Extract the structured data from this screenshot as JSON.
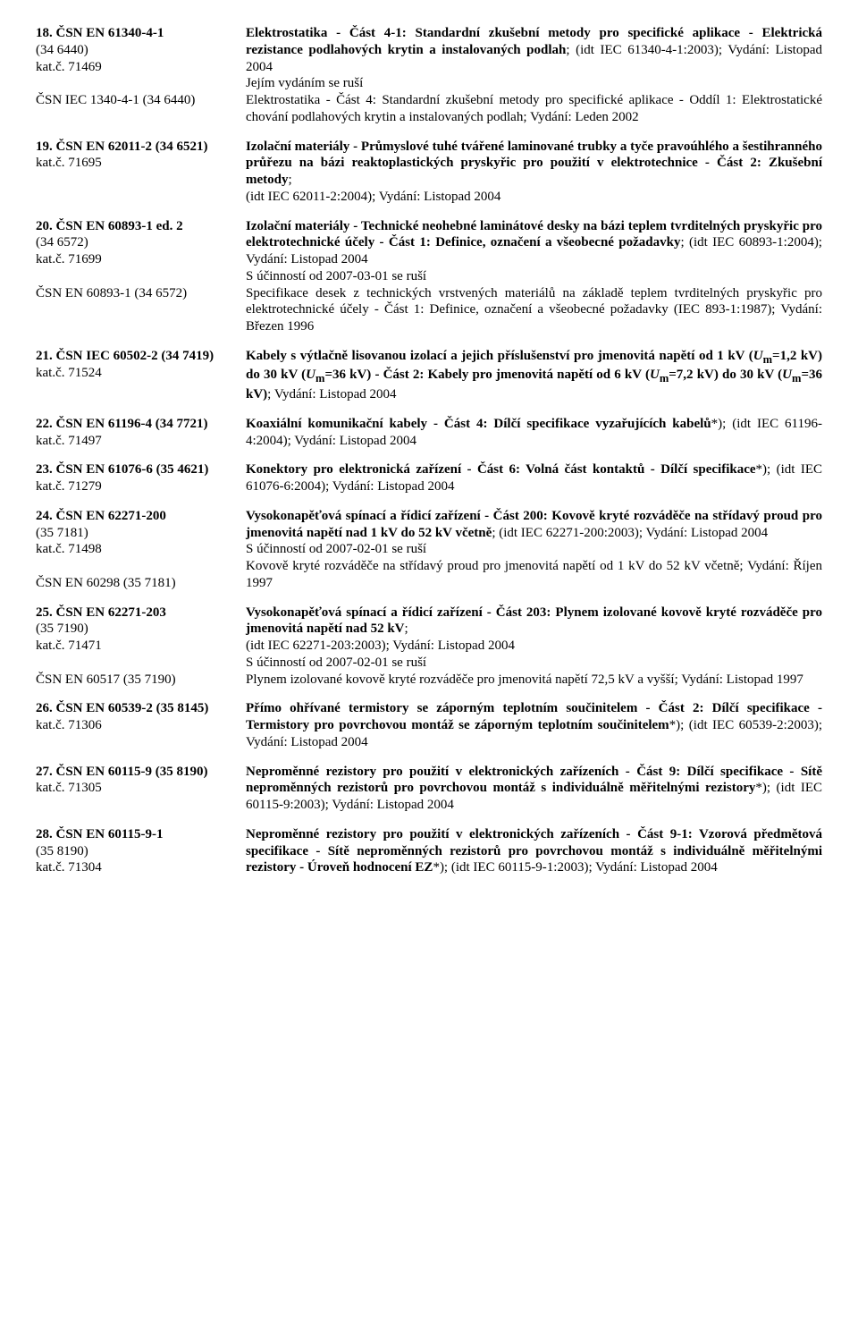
{
  "entries": [
    {
      "left": [
        {
          "text": "18. ČSN EN 61340-4-1",
          "bold": true
        },
        {
          "text": "(34 6440)"
        },
        {
          "text": "kat.č. 71469"
        },
        {
          "text": ""
        },
        {
          "text": "ČSN IEC 1340-4-1 (34 6440)"
        }
      ],
      "right": [
        {
          "html": "<span class='bold'>Elektrostatika - Část 4-1: Standardní zkušební metody pro specifické aplikace - Elektrická rezistance podlahových krytin a instalovaných podlah</span>; (idt IEC 61340-4-1:2003); Vydání: Listopad 2004"
        },
        {
          "html": "Jejím vydáním se ruší"
        },
        {
          "html": "Elektrostatika - Část 4: Standardní zkušební metody pro specifické aplikace - Oddíl 1: Elektrostatické chování podlahových krytin a instalovaných podlah; Vydání: Leden 2002"
        }
      ]
    },
    {
      "left": [
        {
          "text": "19. ČSN EN 62011-2 (34 6521)",
          "bold": true
        },
        {
          "text": "kat.č. 71695"
        }
      ],
      "right": [
        {
          "html": "<span class='bold'>Izolační materiály - Průmyslové tuhé tvářené laminované trubky a tyče pravoúhlého a šestihranného průřezu na bázi reaktoplastických pryskyřic pro použití v elektrotechnice - Část 2: Zkušební metody</span>;"
        },
        {
          "html": "(idt IEC 62011-2:2004); Vydání: Listopad 2004"
        }
      ]
    },
    {
      "left": [
        {
          "text": "20. ČSN EN 60893-1 ed. 2",
          "bold": true
        },
        {
          "text": "(34 6572)"
        },
        {
          "text": "kat.č. 71699"
        },
        {
          "text": ""
        },
        {
          "text": "ČSN EN 60893-1 (34 6572)"
        }
      ],
      "right": [
        {
          "html": "<span class='bold'>Izolační materiály - Technické neohebné laminátové desky na bázi teplem tvrditelných pryskyřic pro elektrotechnické účely - Část 1: Definice, označení a všeobecné požadavky</span>; (idt IEC 60893-1:2004); Vydání: Listopad 2004"
        },
        {
          "html": "S účinností od 2007-03-01 se ruší"
        },
        {
          "html": "Specifikace desek z technických vrstvených materiálů na základě teplem tvrditelných pryskyřic pro elektrotechnické účely - Část 1: Definice, označení a všeobecné požadavky (IEC 893-1:1987); Vydání: Březen 1996"
        }
      ]
    },
    {
      "left": [
        {
          "text": "21. ČSN IEC 60502-2 (34 7419)",
          "bold": true
        },
        {
          "text": "kat.č. 71524"
        }
      ],
      "right": [
        {
          "html": "<span class='bold'>Kabely s výtlačně lisovanou izolací a jejich příslušenství pro jmenovitá napětí od 1 kV (<i>U</i><sub>m</sub>=1,2 kV) do 30 kV (<i>U</i><sub>m</sub>=36 kV) - Část 2: Kabely pro jmenovitá napětí od 6 kV (<i>U</i><sub>m</sub>=7,2 kV) do 30 kV (<i>U</i><sub>m</sub>=36 kV)</span>; Vydání: Listopad 2004"
        }
      ]
    },
    {
      "left": [
        {
          "text": "22. ČSN EN 61196-4 (34 7721)",
          "bold": true
        },
        {
          "text": "kat.č. 71497"
        }
      ],
      "right": [
        {
          "html": "<span class='bold'>Koaxiální komunikační kabely - Část 4: Dílčí specifikace vyzařujících kabelů</span>*); (idt IEC 61196-4:2004); Vydání: Listopad 2004"
        }
      ]
    },
    {
      "left": [
        {
          "text": "23. ČSN EN 61076-6 (35 4621)",
          "bold": true
        },
        {
          "text": "kat.č. 71279"
        }
      ],
      "right": [
        {
          "html": "<span class='bold'>Konektory pro elektronická zařízení - Část 6: Volná část kontaktů - Dílčí specifikace</span>*); (idt IEC 61076-6:2004); Vydání: Listopad 2004"
        }
      ]
    },
    {
      "left": [
        {
          "text": "24. ČSN EN 62271-200",
          "bold": true
        },
        {
          "text": "(35 7181)"
        },
        {
          "text": "kat.č. 71498"
        },
        {
          "text": ""
        },
        {
          "text": "ČSN EN 60298 (35 7181)"
        }
      ],
      "right": [
        {
          "html": "<span class='bold'>Vysokonapěťová spínací a řídicí zařízení - Část 200: Kovově kryté rozváděče na střídavý proud pro jmenovitá napětí nad 1 kV do 52 kV včetně</span>; (idt IEC 62271-200:2003); Vydání: Listopad 2004"
        },
        {
          "html": "S účinností od 2007-02-01 se ruší"
        },
        {
          "html": "Kovově kryté rozváděče na střídavý proud pro jmenovitá napětí od 1 kV do 52 kV včetně; Vydání: Říjen 1997"
        }
      ]
    },
    {
      "left": [
        {
          "text": "25. ČSN EN 62271-203",
          "bold": true
        },
        {
          "text": "(35 7190)"
        },
        {
          "text": "kat.č. 71471"
        },
        {
          "text": ""
        },
        {
          "text": "ČSN EN 60517 (35 7190)"
        }
      ],
      "right": [
        {
          "html": "<span class='bold'>Vysokonapěťová spínací a řídicí zařízení - Část 203: Plynem izolované kovově kryté rozváděče pro jmenovitá napětí nad 52 kV</span>;"
        },
        {
          "html": "(idt IEC 62271-203:2003); Vydání: Listopad 2004"
        },
        {
          "html": "S účinností od 2007-02-01 se ruší"
        },
        {
          "html": "Plynem izolované kovově kryté rozváděče pro jmenovitá napětí 72,5 kV a vyšší; Vydání: Listopad 1997"
        }
      ]
    },
    {
      "left": [
        {
          "text": "26. ČSN EN 60539-2 (35 8145)",
          "bold": true
        },
        {
          "text": "kat.č. 71306"
        }
      ],
      "right": [
        {
          "html": "<span class='bold'>Přímo ohřívané termistory se záporným teplotním součinitelem - Část 2: Dílčí specifikace - Termistory pro povrchovou montáž se záporným teplotním součinitelem</span>*); (idt IEC 60539-2:2003); Vydání: Listopad 2004"
        }
      ]
    },
    {
      "left": [
        {
          "text": "27. ČSN EN 60115-9 (35 8190)",
          "bold": true
        },
        {
          "text": "kat.č. 71305"
        }
      ],
      "right": [
        {
          "html": "<span class='bold'>Neproměnné rezistory pro použití v elektronických zařízeních - Část 9: Dílčí specifikace - Sítě neproměnných rezistorů pro povrchovou montáž s individuálně měřitelnými rezistory</span>*); (idt IEC 60115-9:2003); Vydání: Listopad 2004"
        }
      ]
    },
    {
      "left": [
        {
          "text": "28. ČSN EN 60115-9-1",
          "bold": true
        },
        {
          "text": "(35 8190)"
        },
        {
          "text": "kat.č. 71304"
        }
      ],
      "right": [
        {
          "html": "<span class='bold'>Neproměnné rezistory pro použití v elektronických zařízeních - Část 9-1: Vzorová předmětová specifikace - Sítě neproměnných rezistorů pro povrchovou montáž s individuálně měřitelnými rezistory - Úroveň hodnocení EZ</span>*); (idt IEC 60115-9-1:2003); Vydání: Listopad 2004"
        }
      ]
    }
  ]
}
